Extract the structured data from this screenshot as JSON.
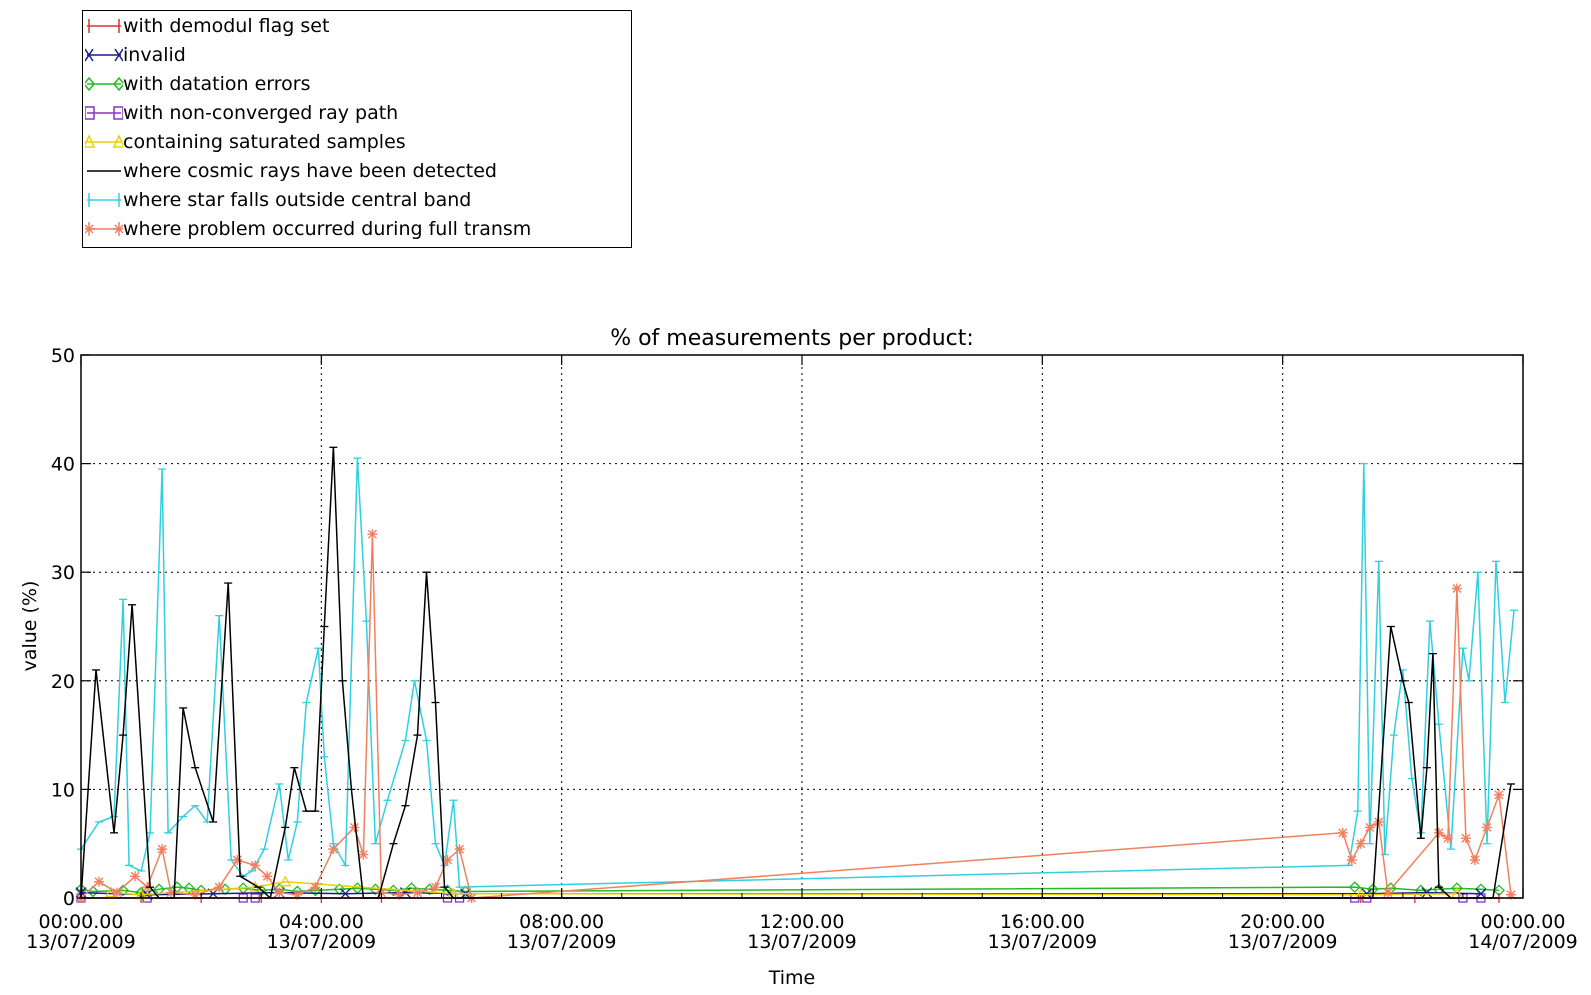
{
  "chart_data": {
    "type": "line",
    "title": "% of measurements per product:",
    "xlabel": "Time",
    "ylabel": "value (%)",
    "ylim": [
      0,
      50
    ],
    "xlim_hours": [
      0,
      24
    ],
    "grid": "dotted",
    "legend_position": "top-left (outside plot)",
    "x_ticks": [
      {
        "h": 0,
        "time": "00:00.00",
        "date": "13/07/2009"
      },
      {
        "h": 4,
        "time": "04:00.00",
        "date": "13/07/2009"
      },
      {
        "h": 8,
        "time": "08:00.00",
        "date": "13/07/2009"
      },
      {
        "h": 12,
        "time": "12:00.00",
        "date": "13/07/2009"
      },
      {
        "h": 16,
        "time": "16:00.00",
        "date": "13/07/2009"
      },
      {
        "h": 20,
        "time": "20:00.00",
        "date": "13/07/2009"
      },
      {
        "h": 24,
        "time": "00:00.00",
        "date": "14/07/2009"
      }
    ],
    "y_ticks": [
      "0",
      "10",
      "20",
      "30",
      "40",
      "50"
    ],
    "series": [
      {
        "name": "with demodul flag set",
        "color": "#e03030",
        "marker": "plus",
        "x": [
          0.0,
          1.0,
          2.0,
          3.0,
          4.0,
          5.0,
          6.5,
          21.3,
          22.2,
          23.6
        ],
        "y": [
          0,
          0,
          0,
          0,
          0,
          0,
          0,
          0,
          0,
          0
        ]
      },
      {
        "name": "invalid",
        "color": "#1a1a8c",
        "marker": "x",
        "x": [
          0.0,
          1.1,
          2.2,
          3.3,
          4.4,
          5.4,
          6.4,
          21.4,
          22.4,
          23.3
        ],
        "y": [
          0.5,
          0.3,
          0.4,
          0.5,
          0.4,
          0.5,
          0.4,
          0.4,
          0.5,
          0.4
        ]
      },
      {
        "name": "with datation errors",
        "color": "#22bb22",
        "marker": "diamond",
        "x": [
          0.0,
          0.2,
          0.7,
          1.0,
          1.3,
          1.6,
          1.8,
          2.0,
          2.4,
          2.7,
          3.0,
          3.3,
          3.6,
          3.9,
          4.3,
          4.6,
          4.9,
          5.2,
          5.5,
          5.8,
          6.1,
          6.4,
          21.2,
          21.5,
          21.8,
          22.3,
          22.6,
          22.9,
          23.3,
          23.6
        ],
        "y": [
          0.8,
          0.6,
          0.7,
          0.5,
          0.8,
          1.0,
          0.9,
          0.7,
          0.8,
          0.9,
          0.7,
          0.8,
          0.6,
          0.7,
          0.8,
          0.9,
          0.8,
          0.7,
          0.9,
          0.8,
          0.7,
          0.6,
          1.0,
          0.8,
          0.9,
          0.7,
          0.8,
          0.9,
          0.8,
          0.7
        ]
      },
      {
        "name": "with non-converged ray path",
        "color": "#8833cc",
        "marker": "square",
        "x": [
          0.0,
          1.1,
          2.7,
          2.9,
          6.1,
          6.3,
          21.2,
          21.4,
          23.0,
          23.3
        ],
        "y": [
          0,
          0,
          0,
          0,
          0,
          0,
          0,
          0,
          0,
          0
        ]
      },
      {
        "name": "containing saturated samples",
        "color": "#e8d000",
        "marker": "triangle",
        "x": [
          0.5,
          1.0,
          2.9,
          3.4,
          6.2,
          21.3,
          22.9
        ],
        "y": [
          0.5,
          0.3,
          1.0,
          1.5,
          0.4,
          0.3,
          0.4
        ]
      },
      {
        "name": "where cosmic rays have been detected",
        "color": "#000000",
        "marker": "tick",
        "x": [
          0.0,
          0.25,
          0.55,
          0.7,
          0.85,
          1.15,
          1.3,
          1.55,
          1.7,
          1.9,
          2.2,
          2.45,
          2.65,
          2.95,
          3.15,
          3.4,
          3.55,
          3.75,
          3.9,
          4.05,
          4.2,
          4.35,
          4.5,
          4.7,
          4.95,
          5.2,
          5.4,
          5.6,
          5.75,
          5.9,
          6.05,
          6.2,
          6.35,
          6.5,
          21.2,
          21.5,
          21.8,
          22.0,
          22.1,
          22.3,
          22.4,
          22.5,
          22.6,
          22.8,
          23.0,
          23.2,
          23.5,
          23.8
        ],
        "y": [
          0,
          21,
          6,
          15,
          27,
          1,
          0,
          0,
          17.5,
          12,
          7,
          29,
          2,
          1,
          0,
          6.5,
          12,
          8,
          8,
          25,
          41.5,
          20,
          10,
          0,
          0,
          5,
          8.5,
          15,
          30,
          18,
          1,
          0,
          0,
          0,
          0,
          0,
          25,
          20,
          18,
          5.5,
          12,
          22.5,
          1,
          0,
          0,
          0,
          0,
          10.5
        ]
      },
      {
        "name": "where star falls outside central band",
        "color": "#30d0e0",
        "marker": "tick",
        "x": [
          0.0,
          0.3,
          0.55,
          0.7,
          0.8,
          1.0,
          1.15,
          1.35,
          1.45,
          1.7,
          1.9,
          2.1,
          2.3,
          2.5,
          2.7,
          2.85,
          3.05,
          3.3,
          3.45,
          3.6,
          3.75,
          3.95,
          4.05,
          4.2,
          4.4,
          4.6,
          4.75,
          4.9,
          5.1,
          5.4,
          5.55,
          5.75,
          5.9,
          6.05,
          6.2,
          6.3,
          21.1,
          21.25,
          21.35,
          21.45,
          21.6,
          21.7,
          21.85,
          22.0,
          22.15,
          22.3,
          22.45,
          22.6,
          22.8,
          23.0,
          23.1,
          23.25,
          23.4,
          23.55,
          23.7,
          23.85
        ],
        "y": [
          4.5,
          7,
          7.5,
          27.5,
          3,
          2.5,
          6,
          39.5,
          6,
          7.5,
          8.5,
          7,
          26,
          3.5,
          2,
          2.5,
          4.5,
          10.5,
          3.5,
          7,
          18,
          23,
          13,
          5,
          3,
          40.5,
          25.5,
          5,
          9,
          14.5,
          20,
          14.5,
          5,
          3,
          9,
          1,
          3,
          8,
          40,
          5,
          31,
          4,
          15,
          21,
          11,
          6,
          25.5,
          16,
          4.5,
          23,
          20,
          30,
          5,
          31,
          18,
          26.5
        ]
      },
      {
        "name": "where problem occurred during full transm",
        "color": "#f08060",
        "marker": "star",
        "x": [
          0.0,
          0.3,
          0.6,
          0.9,
          1.1,
          1.35,
          1.5,
          1.9,
          2.3,
          2.6,
          2.9,
          3.1,
          3.3,
          3.6,
          3.9,
          4.2,
          4.55,
          4.7,
          4.85,
          5.0,
          5.3,
          5.6,
          5.9,
          6.1,
          6.3,
          6.5,
          21.0,
          21.15,
          21.3,
          21.45,
          21.6,
          21.75,
          22.6,
          22.75,
          22.9,
          23.05,
          23.2,
          23.4,
          23.6,
          23.8
        ],
        "y": [
          0,
          1.5,
          0.5,
          2,
          1,
          4.5,
          0.5,
          0.3,
          1,
          3.5,
          3,
          2,
          0.5,
          0.3,
          1,
          4.5,
          6.5,
          4,
          33.5,
          0.5,
          0.3,
          0.5,
          1,
          3.5,
          4.5,
          0,
          6,
          3.5,
          5,
          6.5,
          7,
          0.5,
          6,
          5.5,
          28.5,
          5.5,
          3.5,
          6.5,
          9.5,
          0.3
        ]
      }
    ]
  }
}
